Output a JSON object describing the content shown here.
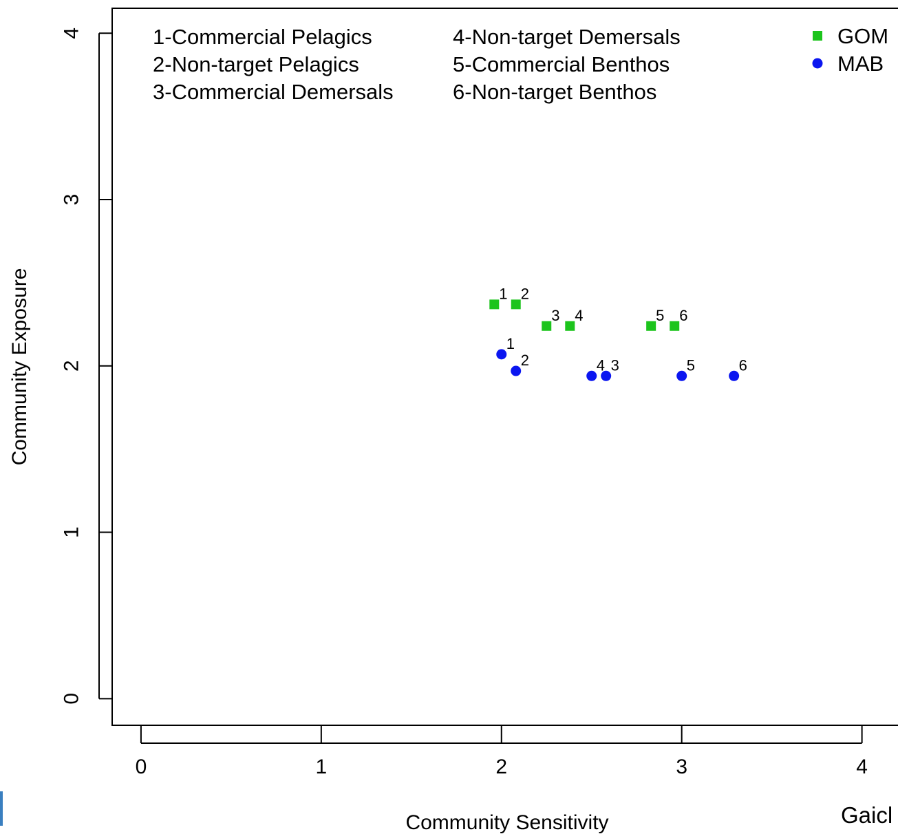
{
  "chart_data": {
    "type": "scatter",
    "xlabel": "Community Sensitivity",
    "ylabel": "Community Exposure",
    "xlim": [
      -0.16,
      4.2
    ],
    "ylim": [
      -0.16,
      4.15
    ],
    "xticks": [
      0,
      1,
      2,
      3,
      4
    ],
    "yticks": [
      0,
      1,
      2,
      3,
      4
    ],
    "grid": false,
    "legend_placement": "top-right",
    "key_left": [
      "1-Commercial Pelagics",
      "2-Non-target Pelagics",
      "3-Commercial Demersals"
    ],
    "key_right": [
      "4-Non-target Demersals",
      "5-Commercial Benthos",
      "6-Non-target Benthos"
    ],
    "series": [
      {
        "name": "GOM",
        "marker": "square",
        "color": "#1cc41c",
        "points": [
          {
            "label": "1",
            "x": 1.96,
            "y": 2.37
          },
          {
            "label": "2",
            "x": 2.08,
            "y": 2.37
          },
          {
            "label": "3",
            "x": 2.25,
            "y": 2.24
          },
          {
            "label": "4",
            "x": 2.38,
            "y": 2.24
          },
          {
            "label": "5",
            "x": 2.83,
            "y": 2.24
          },
          {
            "label": "6",
            "x": 2.96,
            "y": 2.24
          }
        ]
      },
      {
        "name": "MAB",
        "marker": "circle",
        "color": "#0b16f0",
        "points": [
          {
            "label": "1",
            "x": 2.0,
            "y": 2.07
          },
          {
            "label": "2",
            "x": 2.08,
            "y": 1.97
          },
          {
            "label": "4",
            "x": 2.5,
            "y": 1.94
          },
          {
            "label": "3",
            "x": 2.58,
            "y": 1.94
          },
          {
            "label": "5",
            "x": 3.0,
            "y": 1.94
          },
          {
            "label": "6",
            "x": 3.29,
            "y": 1.94
          }
        ]
      }
    ]
  },
  "footer": {
    "credit": "Gaicl"
  }
}
